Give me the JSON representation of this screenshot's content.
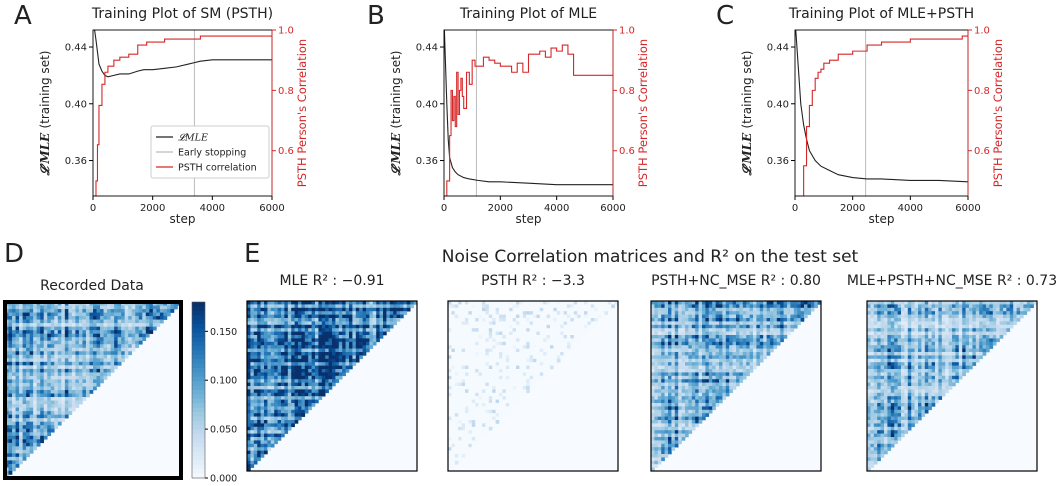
{
  "panels": {
    "letters": [
      "A",
      "B",
      "C",
      "D",
      "E"
    ],
    "titles_top": [
      "Training Plot of SM (PSTH)",
      "Training Plot of MLE",
      "Training Plot of MLE+PSTH"
    ],
    "ylabel_left": "(training set)",
    "ylabel_left_symbol": "𝓛′MLE",
    "ylabel_right": "PSTH Person's Correlation",
    "xlabel": "step",
    "legend": [
      "𝓛MLE",
      "Early stopping",
      "PSTH correlation"
    ],
    "recorded_title": "Recorded Data",
    "e_title": "Noise Correlation matrices and R² on the test set",
    "matrix_titles": [
      "MLE  R² : −0.91",
      "PSTH  R² : −3.3",
      "PSTH+NC_MSE  R² : 0.80",
      "MLE+PSTH+NC_MSE  R² : 0.73"
    ],
    "colorbar_ticks": [
      "0.150",
      "0.100",
      "0.050",
      "0.000"
    ]
  },
  "colors": {
    "loss": "#222222",
    "corr": "#d62728",
    "early_stop": "#bbbbbb",
    "cmap_low": "#f7fbff",
    "cmap_high": "#08306b"
  },
  "chart_data": [
    {
      "type": "line",
      "title": "Training Plot of SM (PSTH)",
      "xlabel": "step",
      "ylabel": "𝓛′MLE (training set)",
      "ylabel_right": "PSTH Person's Correlation",
      "xlim": [
        0,
        6000
      ],
      "xticks": [
        0,
        2000,
        4000,
        6000
      ],
      "ylim_left": [
        0.335,
        0.452
      ],
      "yticks_left": [
        0.36,
        0.4,
        0.44
      ],
      "ylim_right": [
        0.45,
        1.0
      ],
      "yticks_right": [
        0.6,
        0.8,
        1.0
      ],
      "early_stopping_x": 3400,
      "series": [
        {
          "name": "𝓛MLE",
          "axis": "left",
          "x": [
            0,
            100,
            200,
            300,
            400,
            500,
            700,
            900,
            1200,
            1500,
            1700,
            2000,
            2400,
            2800,
            3200,
            3400,
            3600,
            4000,
            5000,
            6000
          ],
          "y": [
            0.46,
            0.445,
            0.428,
            0.423,
            0.42,
            0.419,
            0.42,
            0.421,
            0.421,
            0.423,
            0.424,
            0.424,
            0.425,
            0.426,
            0.428,
            0.429,
            0.43,
            0.431,
            0.431,
            0.431
          ]
        },
        {
          "name": "PSTH correlation",
          "axis": "right",
          "x": [
            0,
            100,
            150,
            200,
            300,
            400,
            500,
            700,
            900,
            1200,
            1500,
            1800,
            2000,
            2400,
            3000,
            3400,
            3600,
            4500,
            6000
          ],
          "y": [
            0.45,
            0.5,
            0.62,
            0.75,
            0.82,
            0.86,
            0.88,
            0.9,
            0.91,
            0.92,
            0.95,
            0.96,
            0.96,
            0.97,
            0.97,
            0.97,
            0.98,
            0.98,
            0.98
          ]
        }
      ]
    },
    {
      "type": "line",
      "title": "Training Plot of MLE",
      "xlabel": "step",
      "ylabel": "𝓛′MLE (training set)",
      "ylabel_right": "PSTH Person's Correlation",
      "xlim": [
        0,
        6000
      ],
      "xticks": [
        0,
        2000,
        4000,
        6000
      ],
      "ylim_left": [
        0.335,
        0.452
      ],
      "yticks_left": [
        0.36,
        0.4,
        0.44
      ],
      "ylim_right": [
        0.45,
        1.0
      ],
      "yticks_right": [
        0.6,
        0.8,
        1.0
      ],
      "early_stopping_x": 1150,
      "series": [
        {
          "name": "𝓛MLE",
          "axis": "left",
          "x": [
            0,
            50,
            100,
            150,
            200,
            300,
            400,
            500,
            700,
            900,
            1200,
            1600,
            2000,
            3000,
            4000,
            5000,
            6000
          ],
          "y": [
            0.46,
            0.43,
            0.4,
            0.375,
            0.362,
            0.355,
            0.352,
            0.35,
            0.348,
            0.347,
            0.346,
            0.345,
            0.345,
            0.344,
            0.343,
            0.343,
            0.343
          ]
        },
        {
          "name": "PSTH correlation",
          "axis": "right",
          "x": [
            0,
            100,
            200,
            250,
            300,
            350,
            400,
            450,
            500,
            550,
            600,
            650,
            700,
            800,
            900,
            1000,
            1100,
            1400,
            1600,
            1800,
            2000,
            2400,
            2600,
            2800,
            3000,
            3400,
            3600,
            3800,
            4000,
            4200,
            4400,
            4600,
            6000
          ],
          "y": [
            0.45,
            0.5,
            0.65,
            0.8,
            0.7,
            0.78,
            0.68,
            0.86,
            0.72,
            0.8,
            0.84,
            0.78,
            0.74,
            0.86,
            0.82,
            0.9,
            0.88,
            0.91,
            0.9,
            0.89,
            0.88,
            0.86,
            0.89,
            0.86,
            0.92,
            0.93,
            0.91,
            0.94,
            0.93,
            0.95,
            0.92,
            0.85,
            0.85
          ]
        }
      ]
    },
    {
      "type": "line",
      "title": "Training Plot of MLE+PSTH",
      "xlabel": "step",
      "ylabel": "𝓛′MLE (training set)",
      "ylabel_right": "PSTH Person's Correlation",
      "xlim": [
        0,
        6000
      ],
      "xticks": [
        0,
        2000,
        4000,
        6000
      ],
      "ylim_left": [
        0.335,
        0.452
      ],
      "yticks_left": [
        0.36,
        0.4,
        0.44
      ],
      "ylim_right": [
        0.45,
        1.0
      ],
      "yticks_right": [
        0.6,
        0.8,
        1.0
      ],
      "early_stopping_x": 2450,
      "series": [
        {
          "name": "𝓛MLE",
          "axis": "left",
          "x": [
            0,
            100,
            200,
            300,
            400,
            500,
            700,
            900,
            1200,
            1500,
            2000,
            2500,
            3000,
            4000,
            5000,
            6000
          ],
          "y": [
            0.46,
            0.43,
            0.4,
            0.385,
            0.375,
            0.367,
            0.36,
            0.356,
            0.353,
            0.35,
            0.348,
            0.347,
            0.347,
            0.346,
            0.346,
            0.345
          ]
        },
        {
          "name": "PSTH correlation",
          "axis": "right",
          "x": [
            0,
            200,
            300,
            400,
            500,
            600,
            700,
            800,
            900,
            1000,
            1200,
            1500,
            2000,
            2500,
            3000,
            4000,
            5000,
            5800,
            6000
          ],
          "y": [
            0.45,
            0.45,
            0.55,
            0.68,
            0.75,
            0.8,
            0.84,
            0.86,
            0.87,
            0.89,
            0.9,
            0.92,
            0.93,
            0.95,
            0.96,
            0.97,
            0.97,
            0.98,
            0.98
          ]
        }
      ]
    },
    {
      "type": "heatmap",
      "title": "Recorded Data",
      "colorbar_range": [
        0.0,
        0.18
      ],
      "colorbar_ticks": [
        0.0,
        0.05,
        0.1,
        0.15
      ],
      "n": 50,
      "mean": 0.09,
      "mask": "upper-left triangle"
    },
    {
      "type": "heatmap",
      "title": "MLE R² : −0.91",
      "n": 50,
      "mean": 0.13
    },
    {
      "type": "heatmap",
      "title": "PSTH R² : −3.3",
      "n": 50,
      "mean": 0.01
    },
    {
      "type": "heatmap",
      "title": "PSTH+NC_MSE R² : 0.80",
      "n": 50,
      "mean": 0.085
    },
    {
      "type": "heatmap",
      "title": "MLE+PSTH+NC_MSE R² : 0.73",
      "n": 50,
      "mean": 0.08
    }
  ]
}
